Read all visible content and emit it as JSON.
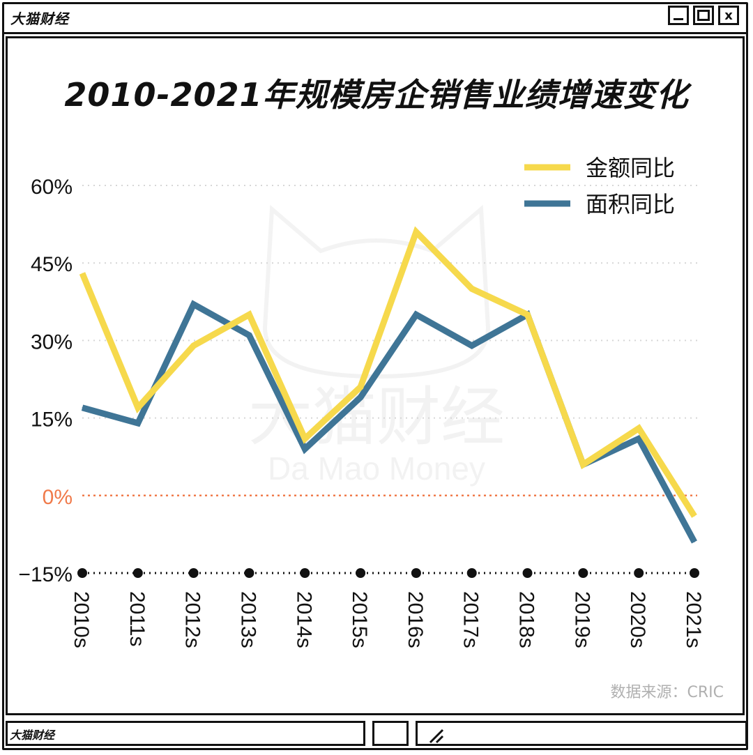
{
  "window": {
    "brand": "大猫财经",
    "minimize_label": "",
    "maximize_label": "",
    "close_label": "x"
  },
  "footer": {
    "brand": "大猫财经"
  },
  "source": "数据来源：CRIC",
  "watermark": {
    "cn": "大猫财经",
    "en": "Da Mao Money"
  },
  "colors": {
    "amount": "#f6d94c",
    "area": "#3f7596",
    "zero_line": "#f07a4a",
    "grid": "#d6d6d6"
  },
  "chart_data": {
    "type": "line",
    "title": "2010-2021年规模房企销售业绩增速变化",
    "categories": [
      "2010s",
      "2011s",
      "2012s",
      "2013s",
      "2014s",
      "2015s",
      "2016s",
      "2017s",
      "2018s",
      "2019s",
      "2020s",
      "2021s"
    ],
    "series": [
      {
        "name": "金额同比",
        "values": [
          43,
          17,
          29,
          35,
          11,
          21,
          51,
          40,
          35,
          6,
          13,
          -4
        ]
      },
      {
        "name": "面积同比",
        "values": [
          17,
          14,
          37,
          31,
          9,
          19,
          35,
          29,
          35,
          6,
          11,
          -9
        ]
      }
    ],
    "y_ticks": [
      {
        "value": 60,
        "label": "60%"
      },
      {
        "value": 45,
        "label": "45%"
      },
      {
        "value": 30,
        "label": "30%"
      },
      {
        "value": 15,
        "label": "15%"
      },
      {
        "value": 0,
        "label": "0%"
      },
      {
        "value": -15,
        "label": "−15%"
      }
    ],
    "ylim": [
      -15,
      60
    ],
    "grid": true,
    "legend": "top-right"
  }
}
